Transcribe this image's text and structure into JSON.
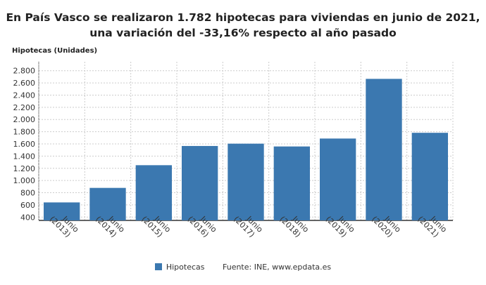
{
  "chart_data": {
    "type": "bar",
    "title": "En País Vasco se realizaron 1.782 hipotecas para viviendas en junio de 2021, una variación del -33,16% respecto al año pasado",
    "ylabel": "Hipotecas (Unidades)",
    "xlabel": "",
    "categories": [
      "Junio (2013)",
      "Junio (2014)",
      "Junio (2015)",
      "Junio (2016)",
      "Junio (2017)",
      "Junio (2018)",
      "Junio (2019)",
      "Junio (2020)",
      "Junio (2021)"
    ],
    "series": [
      {
        "name": "Hipotecas",
        "values": [
          641,
          879,
          1251,
          1566,
          1604,
          1558,
          1688,
          2666,
          1782
        ]
      }
    ],
    "ylim": [
      400,
      2800
    ],
    "yticks": [
      "400",
      "600",
      "800",
      "1.000",
      "1.200",
      "1.400",
      "1.600",
      "1.800",
      "2.000",
      "2.200",
      "2.400",
      "2.600",
      "2.800"
    ],
    "grid": true,
    "legend_position": "bottom",
    "color": "#3b78b0"
  },
  "source": "Fuente: INE, www.epdata.es"
}
